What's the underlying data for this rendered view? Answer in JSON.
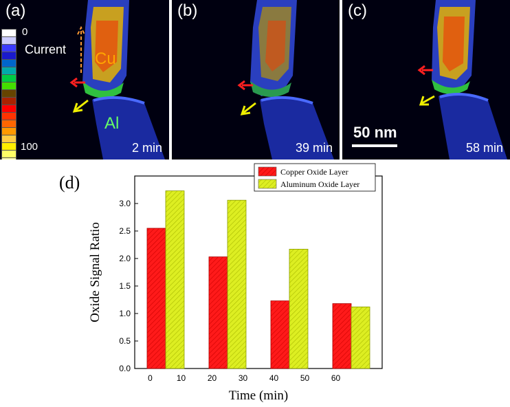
{
  "panels": [
    {
      "label": "(a)",
      "time": "2 min"
    },
    {
      "label": "(b)",
      "time": "39 min"
    },
    {
      "label": "(c)",
      "time": "58 min"
    }
  ],
  "colorbar": {
    "min": "0",
    "max": "100",
    "colors": [
      "#ffffff",
      "#ccccff",
      "#3a3aff",
      "#1a1acc",
      "#0066cc",
      "#00aaaa",
      "#00cc44",
      "#44dd00",
      "#664400",
      "#aa2200",
      "#ff0000",
      "#ff3300",
      "#ff6600",
      "#ff9900",
      "#ffcc44",
      "#ffee00",
      "#ffff66",
      "#ffffaa"
    ]
  },
  "annotations": {
    "current": "Current",
    "cu": "Cu",
    "al": "Al",
    "scale": "50 nm"
  },
  "colors": {
    "copper": "#ff1a1a",
    "aluminum": "#ddee22",
    "red_arrow": "#ff2020",
    "yellow_arrow": "#eeee00",
    "current_arrow": "#ff9933"
  },
  "chart_data": {
    "panel_label": "(d)",
    "type": "bar",
    "xlabel": "Time (min)",
    "ylabel": "Oxide Signal Ratio",
    "ylim": [
      0,
      3.5
    ],
    "yticks": [
      "0.0",
      "0.5",
      "1.0",
      "1.5",
      "2.0",
      "2.5",
      "3.0"
    ],
    "xticks": [
      "0",
      "10",
      "20",
      "30",
      "40",
      "50",
      "60"
    ],
    "series": [
      {
        "name": "Copper Oxide Layer",
        "color": "#ff1a1a",
        "x": [
          2,
          22,
          42,
          62
        ],
        "values": [
          2.55,
          2.03,
          1.23,
          1.18
        ]
      },
      {
        "name": "Aluminum Oxide Layer",
        "color": "#ddee22",
        "x": [
          8,
          28,
          48,
          68
        ],
        "values": [
          3.23,
          3.06,
          2.17,
          1.12
        ]
      }
    ],
    "legend": "top-center"
  }
}
